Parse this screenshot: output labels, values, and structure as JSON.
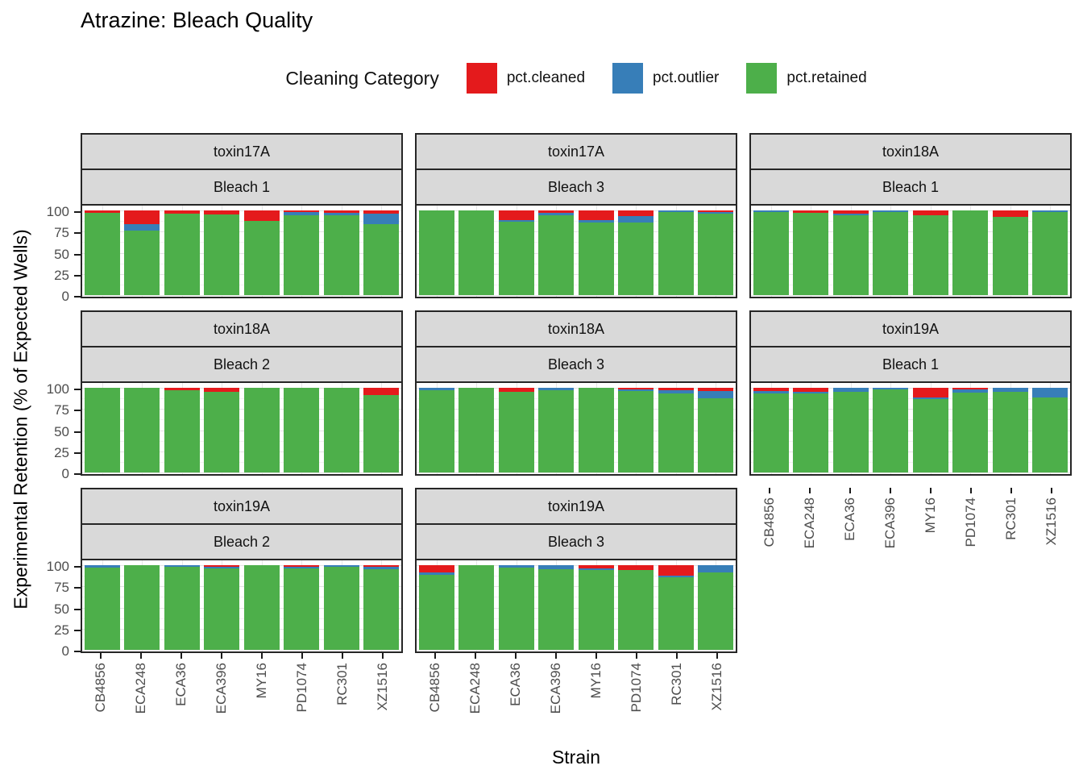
{
  "chart_data": {
    "type": "bar",
    "stacked": true,
    "title": "Atrazine: Bleach Quality",
    "legend_title": "Cleaning Category",
    "xlabel": "Strain",
    "ylabel": "Experimental Retention (% of Expected Wells)",
    "y_ticks": [
      100,
      75,
      50,
      25,
      0
    ],
    "y_minor_ticks": [
      87.5,
      62.5,
      37.5,
      12.5
    ],
    "ylim": [
      0,
      100
    ],
    "grid_layout": {
      "rows": 3,
      "cols": 3,
      "empty_cell": "row3-col3"
    },
    "categories": [
      "CB4856",
      "ECA248",
      "ECA36",
      "ECA396",
      "MY16",
      "PD1074",
      "RC301",
      "XZ1516"
    ],
    "series": [
      {
        "name": "pct.cleaned",
        "color": "#E41A1C"
      },
      {
        "name": "pct.outlier",
        "color": "#377EB8"
      },
      {
        "name": "pct.retained",
        "color": "#4DAF4A"
      }
    ],
    "facets": [
      {
        "toxin": "toxin17A",
        "bleach": "Bleach 1",
        "pct_cleaned": [
          3,
          16,
          4,
          5,
          12,
          2,
          3,
          4
        ],
        "pct_outlier": [
          0,
          8,
          0,
          0,
          0,
          4,
          3,
          12
        ],
        "pct_retained": [
          97,
          76,
          96,
          95,
          88,
          94,
          94,
          84
        ]
      },
      {
        "toxin": "toxin17A",
        "bleach": "Bleach 3",
        "pct_cleaned": [
          0,
          0,
          11,
          3,
          11,
          7,
          0,
          2
        ],
        "pct_outlier": [
          0,
          0,
          2,
          3,
          3,
          7,
          2,
          2
        ],
        "pct_retained": [
          100,
          100,
          87,
          94,
          86,
          86,
          98,
          96
        ]
      },
      {
        "toxin": "toxin18A",
        "bleach": "Bleach 1",
        "pct_cleaned": [
          0,
          3,
          4,
          0,
          6,
          0,
          8,
          0
        ],
        "pct_outlier": [
          2,
          0,
          2,
          2,
          0,
          0,
          0,
          2
        ],
        "pct_retained": [
          98,
          97,
          94,
          98,
          94,
          100,
          92,
          98
        ]
      },
      {
        "toxin": "toxin18A",
        "bleach": "Bleach 2",
        "pct_cleaned": [
          0,
          0,
          3,
          5,
          0,
          0,
          0,
          9
        ],
        "pct_outlier": [
          0,
          0,
          0,
          0,
          0,
          0,
          0,
          0
        ],
        "pct_retained": [
          100,
          100,
          97,
          95,
          100,
          100,
          100,
          91
        ]
      },
      {
        "toxin": "toxin18A",
        "bleach": "Bleach 3",
        "pct_cleaned": [
          0,
          0,
          5,
          0,
          0,
          2,
          3,
          4
        ],
        "pct_outlier": [
          3,
          0,
          0,
          3,
          0,
          2,
          4,
          8
        ],
        "pct_retained": [
          97,
          100,
          95,
          97,
          100,
          96,
          93,
          88
        ]
      },
      {
        "toxin": "toxin19A",
        "bleach": "Bleach 1",
        "pct_cleaned": [
          4,
          5,
          0,
          0,
          11,
          2,
          0,
          0
        ],
        "pct_outlier": [
          3,
          2,
          5,
          2,
          2,
          4,
          5,
          11
        ],
        "pct_retained": [
          93,
          93,
          95,
          98,
          87,
          94,
          95,
          89
        ]
      },
      {
        "toxin": "toxin19A",
        "bleach": "Bleach 2",
        "pct_cleaned": [
          0,
          0,
          0,
          2,
          0,
          2,
          0,
          2
        ],
        "pct_outlier": [
          3,
          0,
          2,
          2,
          0,
          2,
          2,
          3
        ],
        "pct_retained": [
          97,
          100,
          98,
          96,
          100,
          96,
          98,
          95
        ]
      },
      {
        "toxin": "toxin19A",
        "bleach": "Bleach 3",
        "pct_cleaned": [
          9,
          0,
          0,
          0,
          4,
          6,
          12,
          0
        ],
        "pct_outlier": [
          2,
          0,
          3,
          5,
          2,
          0,
          2,
          9
        ],
        "pct_retained": [
          89,
          100,
          97,
          95,
          94,
          94,
          86,
          91
        ]
      }
    ],
    "colors": {
      "strip_bg": "#D9D9D9",
      "panel_border": "#262626",
      "grid_major": "#E3E3E3",
      "grid_minor": "#F1F1F1",
      "tick_text": "#4D4D4D"
    }
  }
}
